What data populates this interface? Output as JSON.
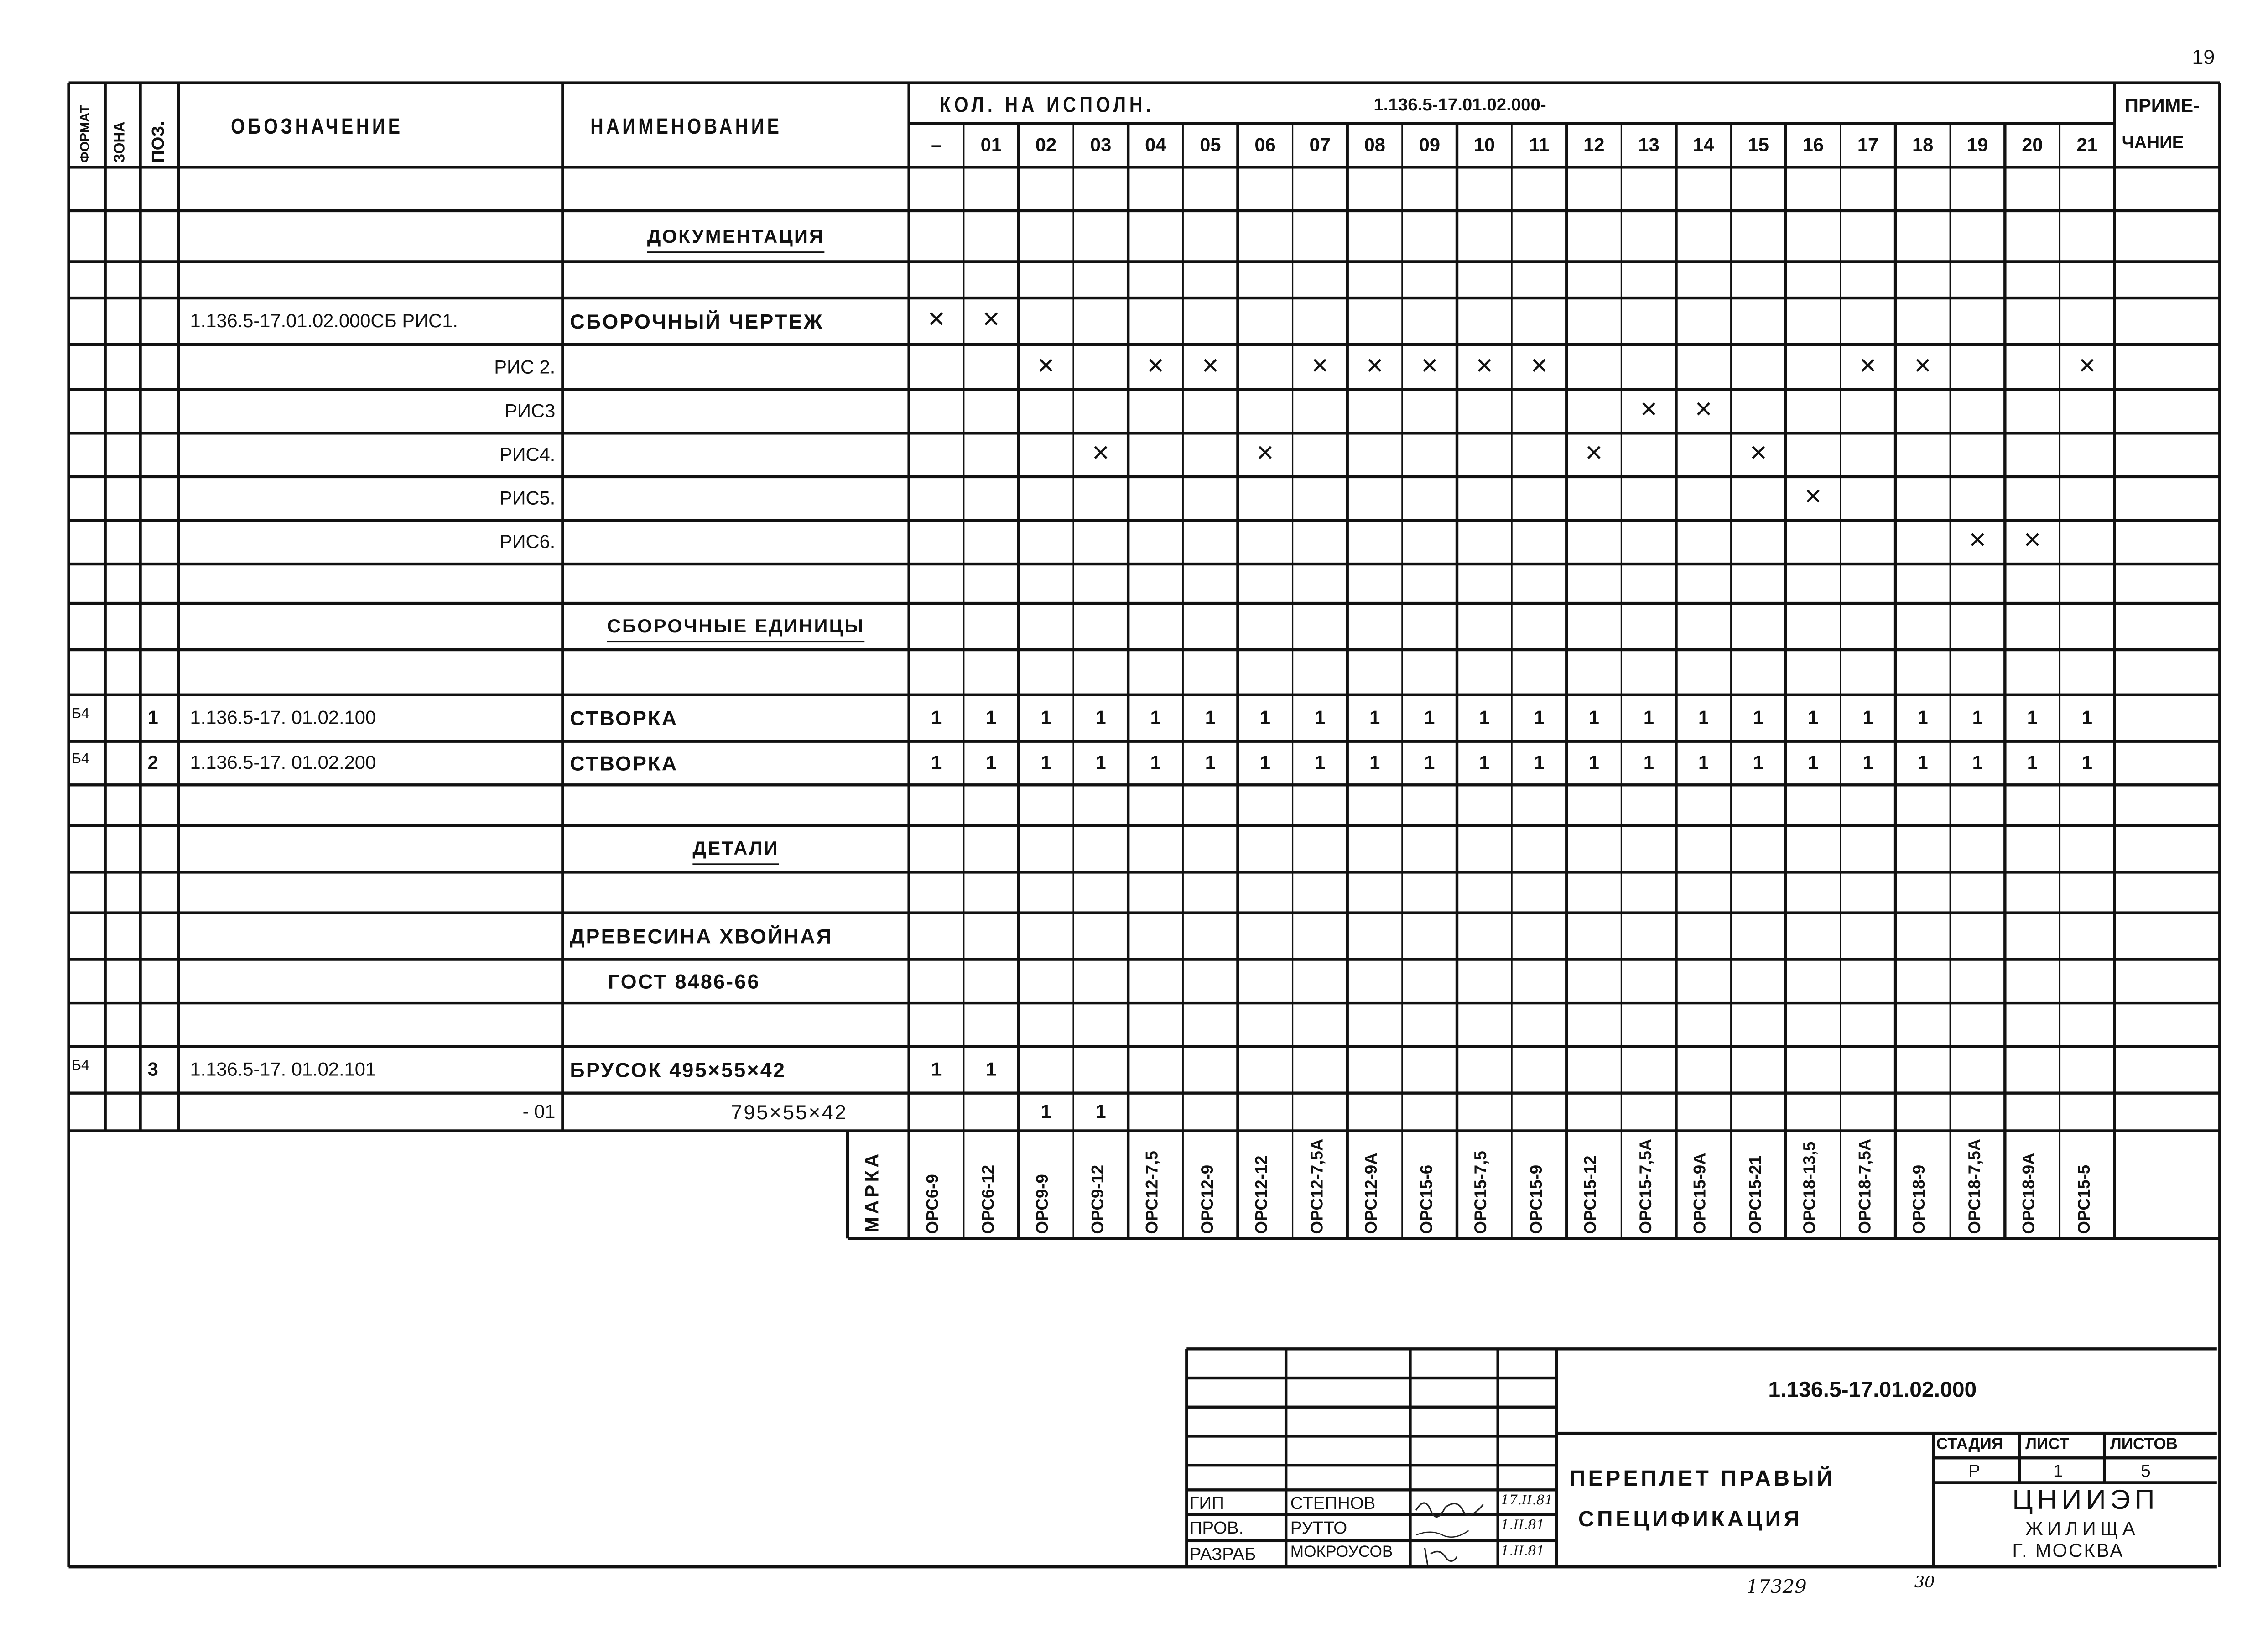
{
  "page_number": "19",
  "header": {
    "format": "ФОРМАТ",
    "zone": "ЗОНА",
    "pos": "ПОЗ.",
    "designation": "ОБОЗНАЧЕНИЕ",
    "name": "НАИМЕНОВАНИЕ",
    "qty_title": "КОЛ. НА ИСПОЛН.",
    "qty_base": "1.136.5-17.01.02.000-",
    "note_line1": "ПРИМЕ-",
    "note_line2": "ЧАНИЕ"
  },
  "variants": [
    "–",
    "01",
    "02",
    "03",
    "04",
    "05",
    "06",
    "07",
    "08",
    "09",
    "10",
    "11",
    "12",
    "13",
    "14",
    "15",
    "16",
    "17",
    "18",
    "19",
    "20",
    "21"
  ],
  "rows": [
    {},
    {
      "name": "ДОКУМЕНТАЦИЯ",
      "section": true
    },
    {},
    {
      "designation": "1.136.5-17.01.02.000СБ РИС1.",
      "name": "СБОРОЧНЫЙ ЧЕРТЕЖ",
      "qty": {
        "0": "×",
        "1": "×"
      }
    },
    {
      "designation": "РИС 2.",
      "align": "right",
      "qty": {
        "2": "×",
        "4": "×",
        "5": "×",
        "7": "×",
        "8": "×",
        "9": "×",
        "10": "×",
        "11": "×",
        "17": "×",
        "18": "×",
        "21": "×"
      }
    },
    {
      "designation": "РИС3",
      "align": "right",
      "qty": {
        "13": "×",
        "14": "×"
      }
    },
    {
      "designation": "РИС4.",
      "align": "right",
      "qty": {
        "3": "×",
        "6": "×",
        "12": "×",
        "15": "×"
      }
    },
    {
      "designation": "РИС5.",
      "align": "right",
      "qty": {
        "16": "×"
      }
    },
    {
      "designation": "РИС6.",
      "align": "right",
      "qty": {
        "19": "×",
        "20": "×"
      }
    },
    {},
    {
      "name": "СБОРОЧНЫЕ ЕДИНИЦЫ",
      "section": true
    },
    {},
    {
      "format": "Б4",
      "pos": "1",
      "designation": "1.136.5-17. 01.02.100",
      "name": "СТВОРКА",
      "qty": {
        "0": "1",
        "1": "1",
        "2": "1",
        "3": "1",
        "4": "1",
        "5": "1",
        "6": "1",
        "7": "1",
        "8": "1",
        "9": "1",
        "10": "1",
        "11": "1",
        "12": "1",
        "13": "1",
        "14": "1",
        "15": "1",
        "16": "1",
        "17": "1",
        "18": "1",
        "19": "1",
        "20": "1",
        "21": "1"
      }
    },
    {
      "format": "Б4",
      "pos": "2",
      "designation": "1.136.5-17. 01.02.200",
      "name": "СТВОРКА",
      "qty": {
        "0": "1",
        "1": "1",
        "2": "1",
        "3": "1",
        "4": "1",
        "5": "1",
        "6": "1",
        "7": "1",
        "8": "1",
        "9": "1",
        "10": "1",
        "11": "1",
        "12": "1",
        "13": "1",
        "14": "1",
        "15": "1",
        "16": "1",
        "17": "1",
        "18": "1",
        "19": "1",
        "20": "1",
        "21": "1"
      }
    },
    {},
    {
      "name": "ДЕТАЛИ",
      "section": true
    },
    {},
    {
      "name": "ДРЕВЕСИНА ХВОЙНАЯ"
    },
    {
      "name": "ГОСТ 8486-66",
      "indent": true
    },
    {},
    {
      "format": "Б4",
      "pos": "3",
      "designation": "1.136.5-17. 01.02.101",
      "name": "БРУСОК  495×55×42",
      "qty": {
        "0": "1",
        "1": "1"
      }
    },
    {
      "designation": "- 01",
      "align": "right",
      "name": "795×55×42",
      "name_align": "right",
      "qty": {
        "2": "1",
        "3": "1"
      }
    }
  ],
  "marks_label": "МАРКА",
  "marks": [
    "ОРС6-9",
    "ОРС6-12",
    "ОРС9-9",
    "ОРС9-12",
    "ОРС12-7,5",
    "ОРС12-9",
    "ОРС12-12",
    "ОРС12-7,5А",
    "ОРС12-9А",
    "ОРС15-6",
    "ОРС15-7,5",
    "ОРС15-9",
    "ОРС15-12",
    "ОРС15-7,5А",
    "ОРС15-9А",
    "ОРС15-21",
    "ОРС18-13,5",
    "ОРС18-7,5А",
    "ОРС18-9",
    "ОРС18-7,5А",
    "ОРС18-9А",
    "ОРС15-5"
  ],
  "title_block": {
    "doc_number": "1.136.5-17.01.02.000",
    "title_line1": "ПЕРЕПЛЕТ ПРАВЫЙ",
    "title_line2": "СПЕЦИФИКАЦИЯ",
    "stage_label": "СТАДИЯ",
    "sheet_label": "ЛИСТ",
    "sheets_label": "ЛИСТОВ",
    "stage": "Р",
    "sheet": "1",
    "sheets": "5",
    "org_line1": "ЦНИИЭП",
    "org_line2": "ЖИЛИЩА",
    "org_line3": "Г. МОСКВА",
    "signatures": [
      {
        "role": "ГИП",
        "name": "СТЕПНОВ",
        "date": "17.II.81"
      },
      {
        "role": "ПРОВ.",
        "name": "РУТТО",
        "date": "1.II.81"
      },
      {
        "role": "РАЗРАБ",
        "name": "МОКРОУСОВ",
        "date": "1.II.81"
      }
    ]
  },
  "footer": {
    "inventory": "17329",
    "extra": "30"
  }
}
